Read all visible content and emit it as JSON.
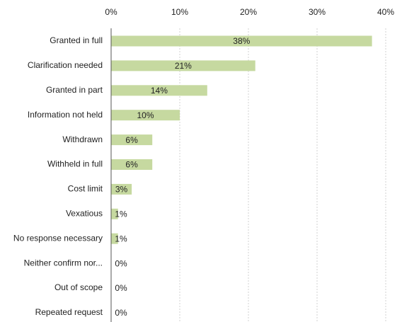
{
  "chart_data": {
    "type": "bar",
    "orientation": "horizontal",
    "categories": [
      "Granted in full",
      "Clarification needed",
      "Granted in part",
      "Information not held",
      "Withdrawn",
      "Withheld in full",
      "Cost limit",
      "Vexatious",
      "No response necessary",
      "Neither confirm nor...",
      "Out of scope",
      "Repeated request"
    ],
    "values": [
      38,
      21,
      14,
      10,
      6,
      6,
      3,
      1,
      1,
      0,
      0,
      0
    ],
    "value_labels": [
      "38%",
      "21%",
      "14%",
      "10%",
      "6%",
      "6%",
      "3%",
      "1%",
      "1%",
      "0%",
      "0%",
      "0%"
    ],
    "color": "#c6d9a0",
    "xlim": [
      0,
      40
    ],
    "xticks": [
      {
        "value": 0,
        "label": "0%"
      },
      {
        "value": 10,
        "label": "10%"
      },
      {
        "value": 20,
        "label": "20%"
      },
      {
        "value": 30,
        "label": "30%"
      },
      {
        "value": 40,
        "label": "40%"
      }
    ],
    "grid": true
  }
}
